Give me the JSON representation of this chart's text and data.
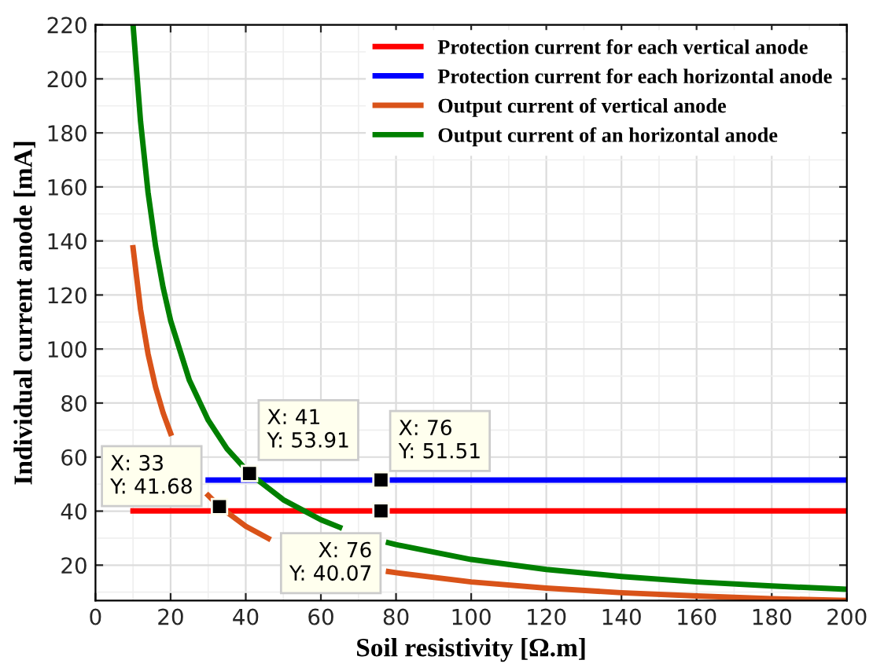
{
  "chart_data": {
    "type": "line",
    "xlabel": "Soil resistivity [Ω.m]",
    "ylabel": "Individual current anode [mA]",
    "xlim": [
      0,
      200
    ],
    "ylim": [
      6.9,
      220
    ],
    "xticks": [
      0,
      20,
      40,
      60,
      80,
      100,
      120,
      140,
      160,
      180,
      200
    ],
    "yticks": [
      20,
      40,
      60,
      80,
      100,
      120,
      140,
      160,
      180,
      200,
      220
    ],
    "grid": true,
    "legend": "top right",
    "marker": "none",
    "line_style": "solid",
    "series": [
      {
        "name": "Protection current for each vertical anode",
        "color": "#ff0000",
        "x": [
          10,
          200
        ],
        "values": [
          40.07,
          40.07
        ]
      },
      {
        "name": "Protection current for each horizontal anode",
        "color": "#0000ff",
        "x": [
          30,
          200
        ],
        "values": [
          51.51,
          51.51
        ]
      },
      {
        "name": "Output current of vertical anode",
        "color": "#d95319",
        "x": [
          10,
          12,
          14,
          16,
          18,
          20,
          25,
          30,
          33,
          40,
          46,
          60,
          70,
          78,
          80,
          100,
          120,
          140,
          160,
          180,
          200
        ],
        "values": [
          137.5,
          114.6,
          98.2,
          85.9,
          76.4,
          68.8,
          null,
          45.8,
          41.68,
          34.4,
          29.9,
          null,
          null,
          17.6,
          17.2,
          13.8,
          11.5,
          9.8,
          8.6,
          7.6,
          6.9
        ]
      },
      {
        "name": "Output current of an horizontal anode",
        "color": "#008000",
        "x": [
          10,
          12,
          14,
          16,
          18,
          20,
          25,
          30,
          35,
          41,
          50,
          60,
          65,
          70,
          78,
          80,
          100,
          120,
          140,
          160,
          180,
          200
        ],
        "values": [
          220,
          184.2,
          157.9,
          138.1,
          122.8,
          110.5,
          88.4,
          73.7,
          63.1,
          53.91,
          44.2,
          36.8,
          34.0,
          null,
          28.3,
          27.6,
          22.1,
          18.4,
          15.8,
          13.8,
          12.3,
          11.05
        ]
      }
    ],
    "annotations": [
      {
        "text": "X: 33\nY: 41.68",
        "x": 33,
        "y": 41.68
      },
      {
        "text": "X: 41\nY: 53.91",
        "x": 41,
        "y": 53.91
      },
      {
        "text": "X: 76\nY: 51.51",
        "x": 76,
        "y": 51.51
      },
      {
        "text": "X: 76\nY: 40.07",
        "x": 76,
        "y": 40.07
      }
    ]
  }
}
